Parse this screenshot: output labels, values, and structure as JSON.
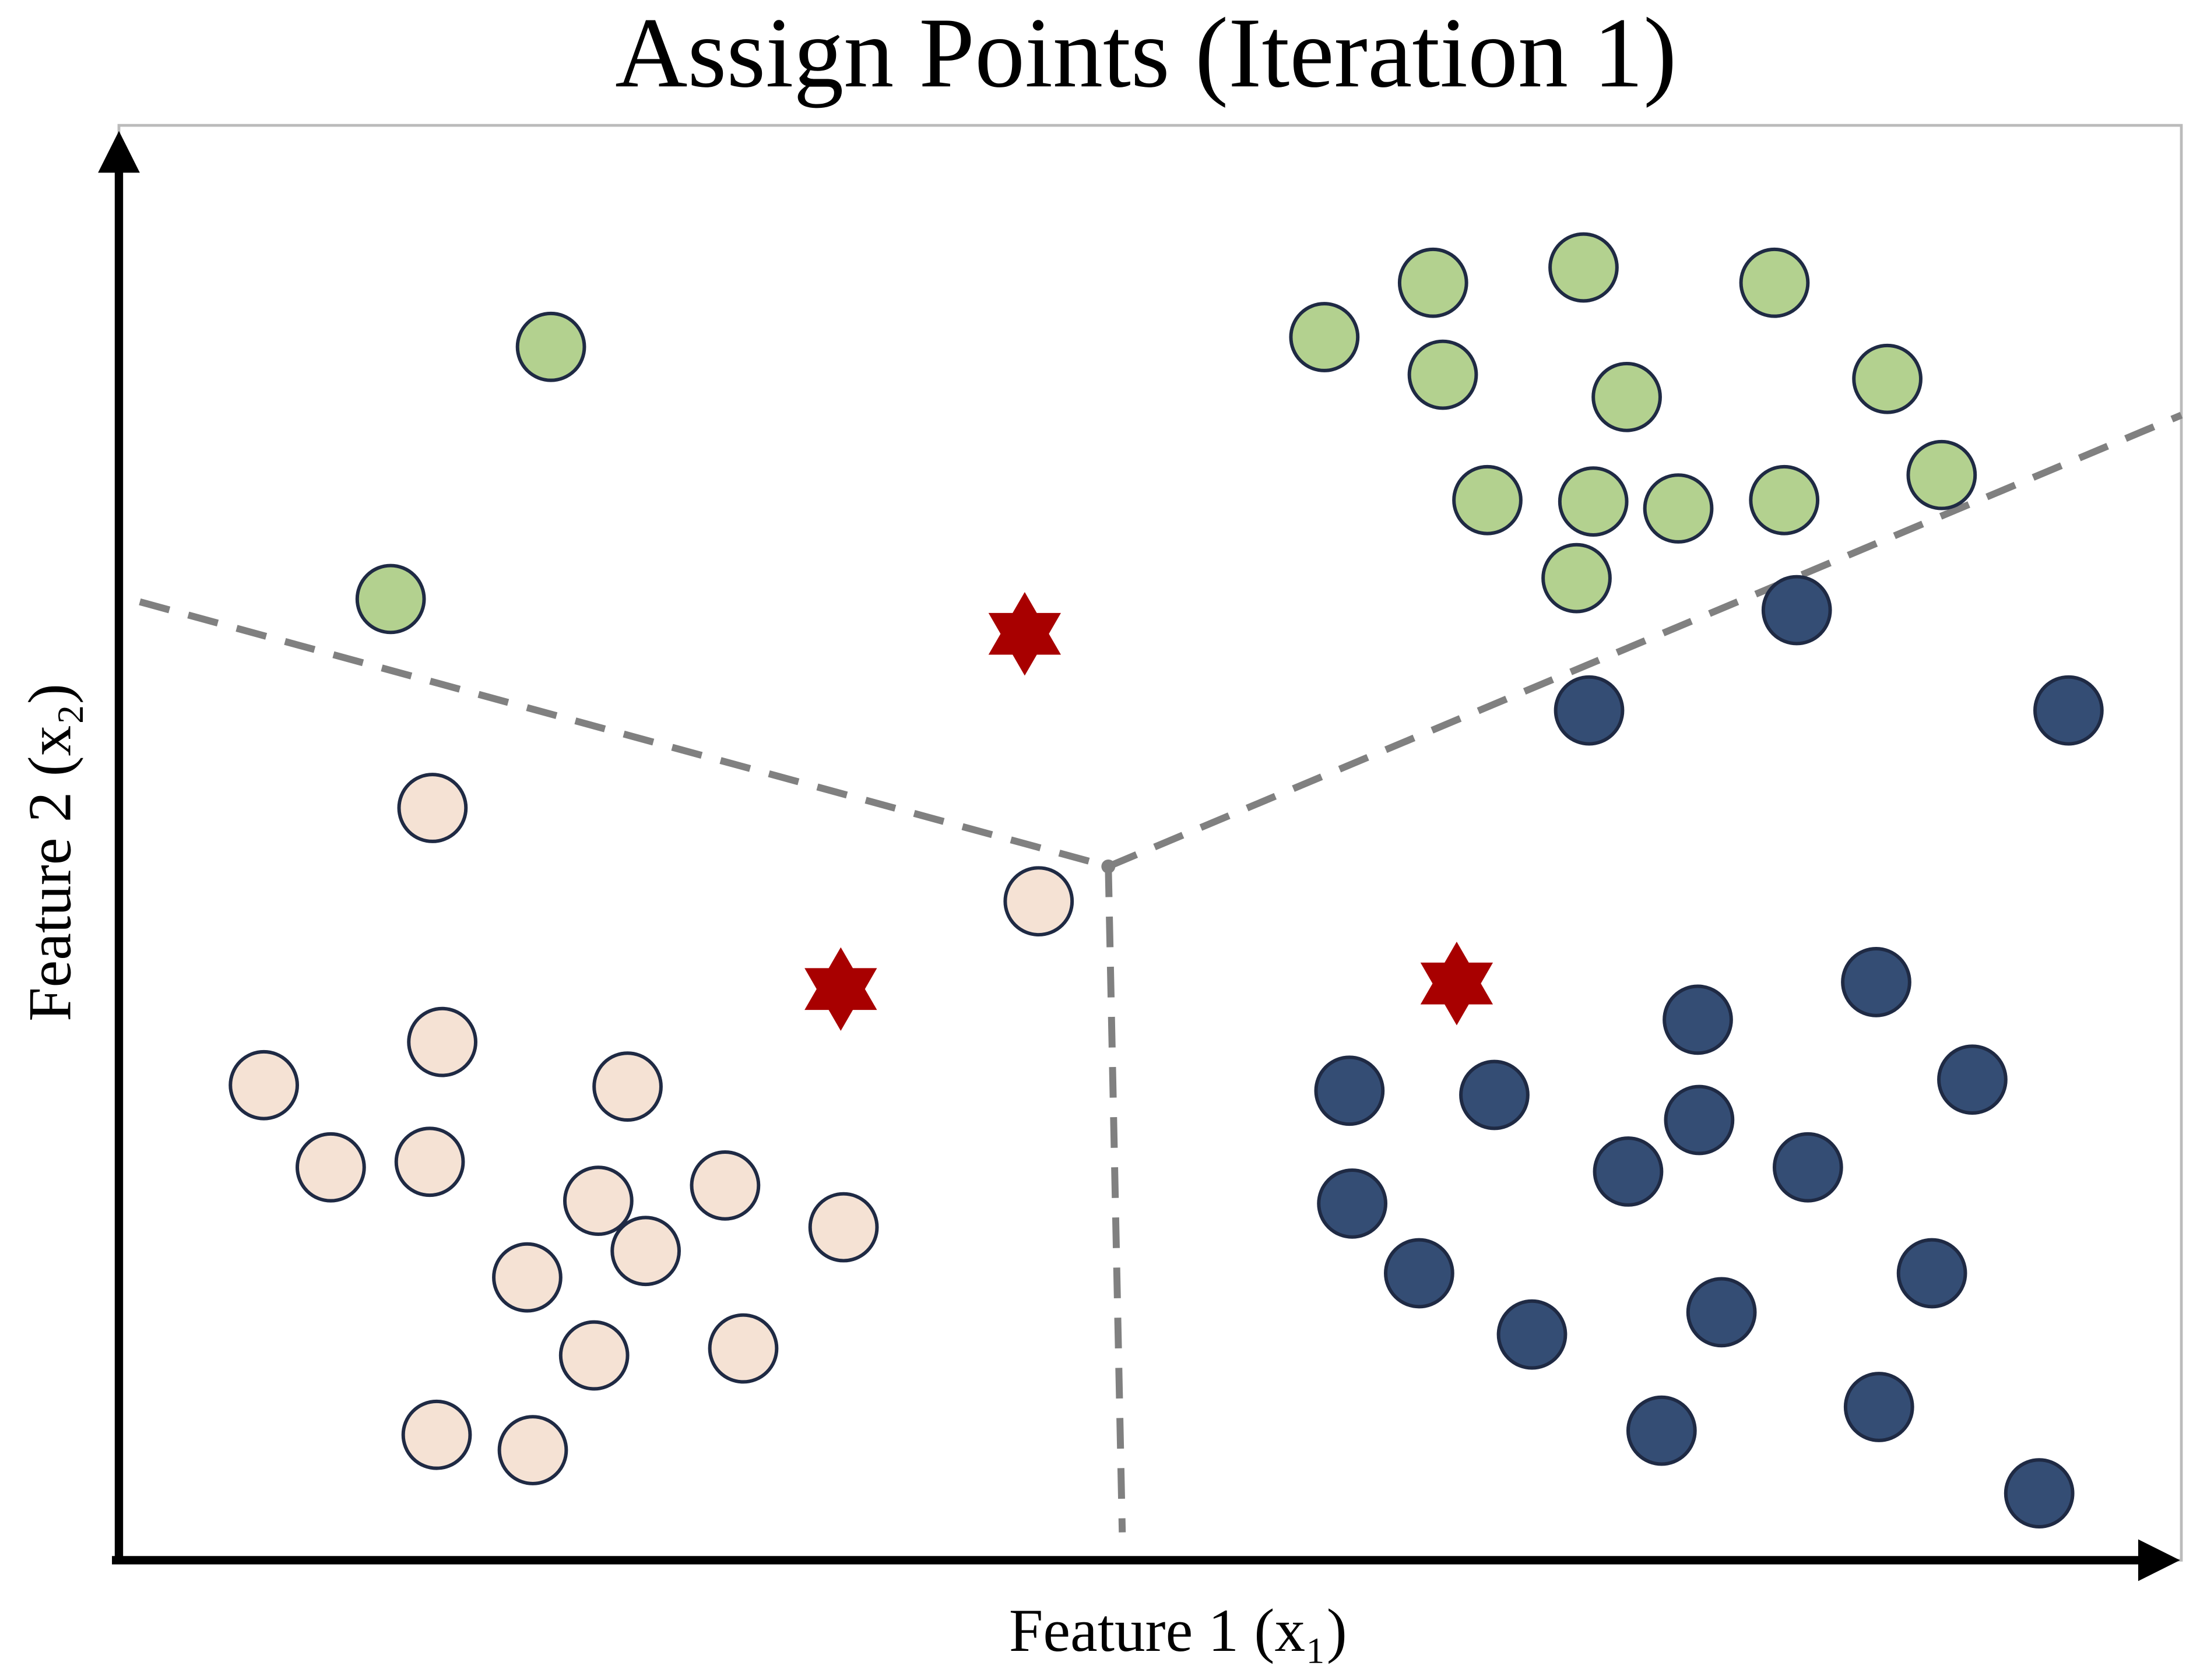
{
  "title": "Assign Points (Iteration 1)",
  "x_axis_label": "Feature 1 (x₁)",
  "y_axis_label": "Feature 2 (x₂)"
}
